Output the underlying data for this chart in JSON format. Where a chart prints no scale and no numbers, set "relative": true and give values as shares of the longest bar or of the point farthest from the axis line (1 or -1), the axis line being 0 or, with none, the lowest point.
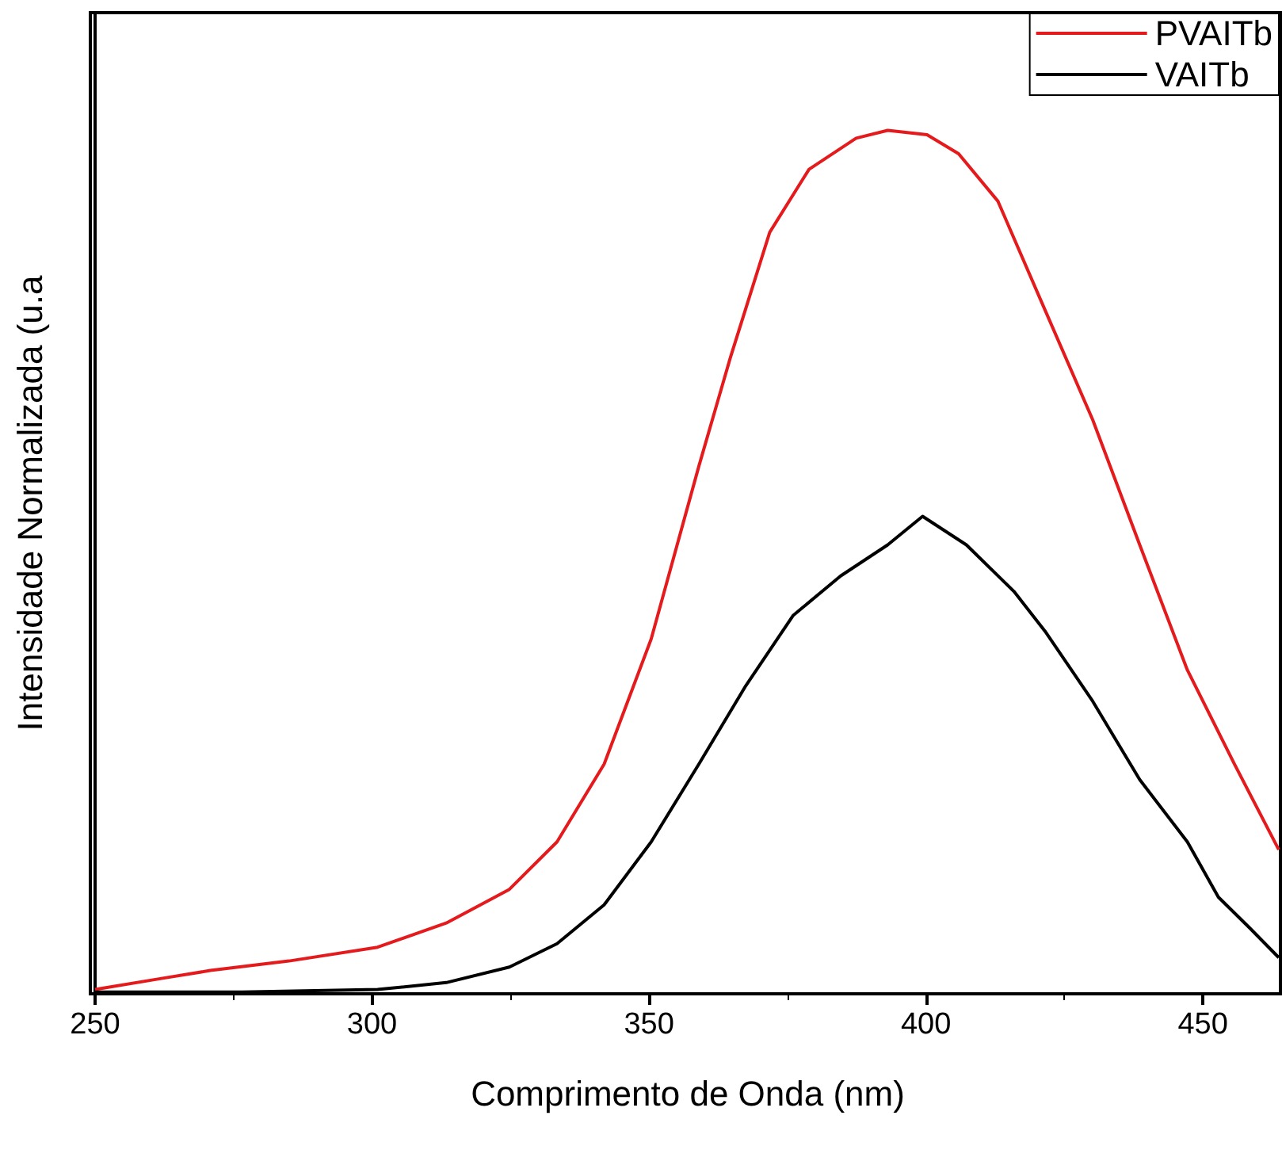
{
  "chart_data": {
    "type": "line",
    "xlabel": "Comprimento de Onda (nm)",
    "ylabel": "Intensidade Normalizada (u.a",
    "relative": true,
    "tick_labels": "x",
    "grid": false,
    "legend": "top right",
    "marker": "none",
    "line_style": "solid",
    "xlim": [
      250,
      464
    ],
    "xticks": [
      250,
      300,
      350,
      400,
      450
    ],
    "series": [
      {
        "name": "PVAITb",
        "color": "#e41a1c",
        "x": [
          250,
          262.2,
          270.8,
          285,
          301,
          313.4,
          324.8,
          333.4,
          341.9,
          350.4,
          359,
          364.7,
          371.8,
          378.9,
          387.4,
          393.1,
          400.2,
          405.9,
          413,
          421.5,
          430.1,
          438.6,
          447.2,
          455.7,
          463.7
        ],
        "values": [
          0.005,
          0.018,
          0.027,
          0.038,
          0.054,
          0.082,
          0.121,
          0.176,
          0.266,
          0.411,
          0.611,
          0.737,
          0.882,
          0.955,
          0.991,
          1.0,
          0.995,
          0.973,
          0.918,
          0.792,
          0.665,
          0.52,
          0.375,
          0.266,
          0.167
        ]
      },
      {
        "name": "VAITb",
        "color": "#000000",
        "x": [
          250,
          276.5,
          301,
          313.4,
          324.8,
          333.4,
          341.9,
          350.4,
          359,
          367.5,
          376,
          384.6,
          393.1,
          399.4,
          407.3,
          415.9,
          421.5,
          430.1,
          438.6,
          447.2,
          452.8,
          458.5,
          463.7
        ],
        "values": [
          0.002,
          0.002,
          0.005,
          0.013,
          0.031,
          0.058,
          0.103,
          0.176,
          0.266,
          0.357,
          0.438,
          0.484,
          0.52,
          0.553,
          0.52,
          0.466,
          0.42,
          0.339,
          0.248,
          0.176,
          0.112,
          0.076,
          0.042
        ]
      }
    ]
  }
}
